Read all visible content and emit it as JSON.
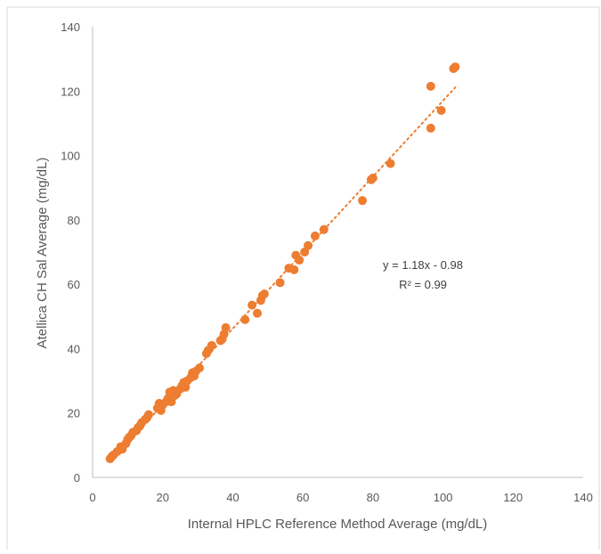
{
  "chart_data": {
    "type": "scatter",
    "title": "",
    "xlabel": "Internal HPLC Reference Method Average (mg/dL)",
    "ylabel": "Atellica CH Sal  Average (mg/dL)",
    "xlim": [
      0,
      140
    ],
    "ylim": [
      0,
      140
    ],
    "xticks": [
      "0",
      "20",
      "40",
      "60",
      "80",
      "100",
      "120",
      "140"
    ],
    "yticks": [
      "0",
      "20",
      "40",
      "60",
      "80",
      "100",
      "120",
      "140"
    ],
    "grid": false,
    "legend": "none",
    "marker_color": "#ED7D31",
    "trendline": {
      "type": "linear",
      "slope": 1.18,
      "intercept": -0.98,
      "style": "dotted",
      "color": "#ED7D31",
      "x_range": [
        5,
        103.5
      ],
      "equation_label": "y = 1.18x - 0.98",
      "r2_label": "R² = 0.99"
    },
    "points": [
      [
        5.0,
        5.8
      ],
      [
        5.5,
        6.5
      ],
      [
        6.0,
        7.0
      ],
      [
        7.0,
        8.0
      ],
      [
        8.0,
        9.5
      ],
      [
        8.5,
        8.8
      ],
      [
        9.5,
        10.5
      ],
      [
        10.0,
        11.8
      ],
      [
        10.5,
        12.5
      ],
      [
        11.0,
        13.0
      ],
      [
        11.5,
        14.0
      ],
      [
        12.5,
        14.5
      ],
      [
        13.0,
        15.5
      ],
      [
        13.5,
        16.0
      ],
      [
        14.0,
        17.0
      ],
      [
        15.0,
        18.0
      ],
      [
        15.5,
        18.5
      ],
      [
        16.0,
        19.5
      ],
      [
        18.5,
        21.5
      ],
      [
        19.0,
        23.0
      ],
      [
        19.5,
        20.8
      ],
      [
        20.0,
        22.5
      ],
      [
        21.0,
        23.5
      ],
      [
        21.5,
        24.5
      ],
      [
        22.0,
        26.5
      ],
      [
        22.5,
        23.5
      ],
      [
        23.0,
        27.0
      ],
      [
        23.5,
        25.5
      ],
      [
        24.0,
        26.0
      ],
      [
        25.0,
        27.5
      ],
      [
        25.5,
        28.5
      ],
      [
        26.0,
        29.5
      ],
      [
        26.5,
        28.0
      ],
      [
        27.0,
        30.0
      ],
      [
        28.0,
        31.0
      ],
      [
        28.5,
        32.5
      ],
      [
        29.0,
        31.5
      ],
      [
        29.5,
        33.0
      ],
      [
        30.5,
        34.0
      ],
      [
        32.5,
        38.5
      ],
      [
        33.0,
        39.5
      ],
      [
        34.0,
        41.0
      ],
      [
        36.5,
        42.5
      ],
      [
        37.0,
        43.0
      ],
      [
        37.5,
        44.5
      ],
      [
        38.0,
        46.5
      ],
      [
        43.5,
        49.0
      ],
      [
        45.5,
        53.5
      ],
      [
        47.0,
        51.0
      ],
      [
        48.0,
        55.0
      ],
      [
        48.5,
        56.5
      ],
      [
        49.0,
        57.0
      ],
      [
        53.5,
        60.5
      ],
      [
        56.0,
        65.0
      ],
      [
        57.5,
        64.5
      ],
      [
        58.0,
        69.0
      ],
      [
        59.0,
        67.5
      ],
      [
        60.5,
        70.0
      ],
      [
        61.5,
        72.0
      ],
      [
        63.5,
        75.0
      ],
      [
        66.0,
        77.0
      ],
      [
        77.0,
        86.0
      ],
      [
        79.5,
        92.5
      ],
      [
        80.0,
        93.0
      ],
      [
        85.0,
        97.5
      ],
      [
        96.5,
        108.5
      ],
      [
        96.5,
        121.5
      ],
      [
        99.5,
        114.0
      ],
      [
        103.0,
        127.0
      ],
      [
        103.5,
        127.5
      ]
    ]
  }
}
